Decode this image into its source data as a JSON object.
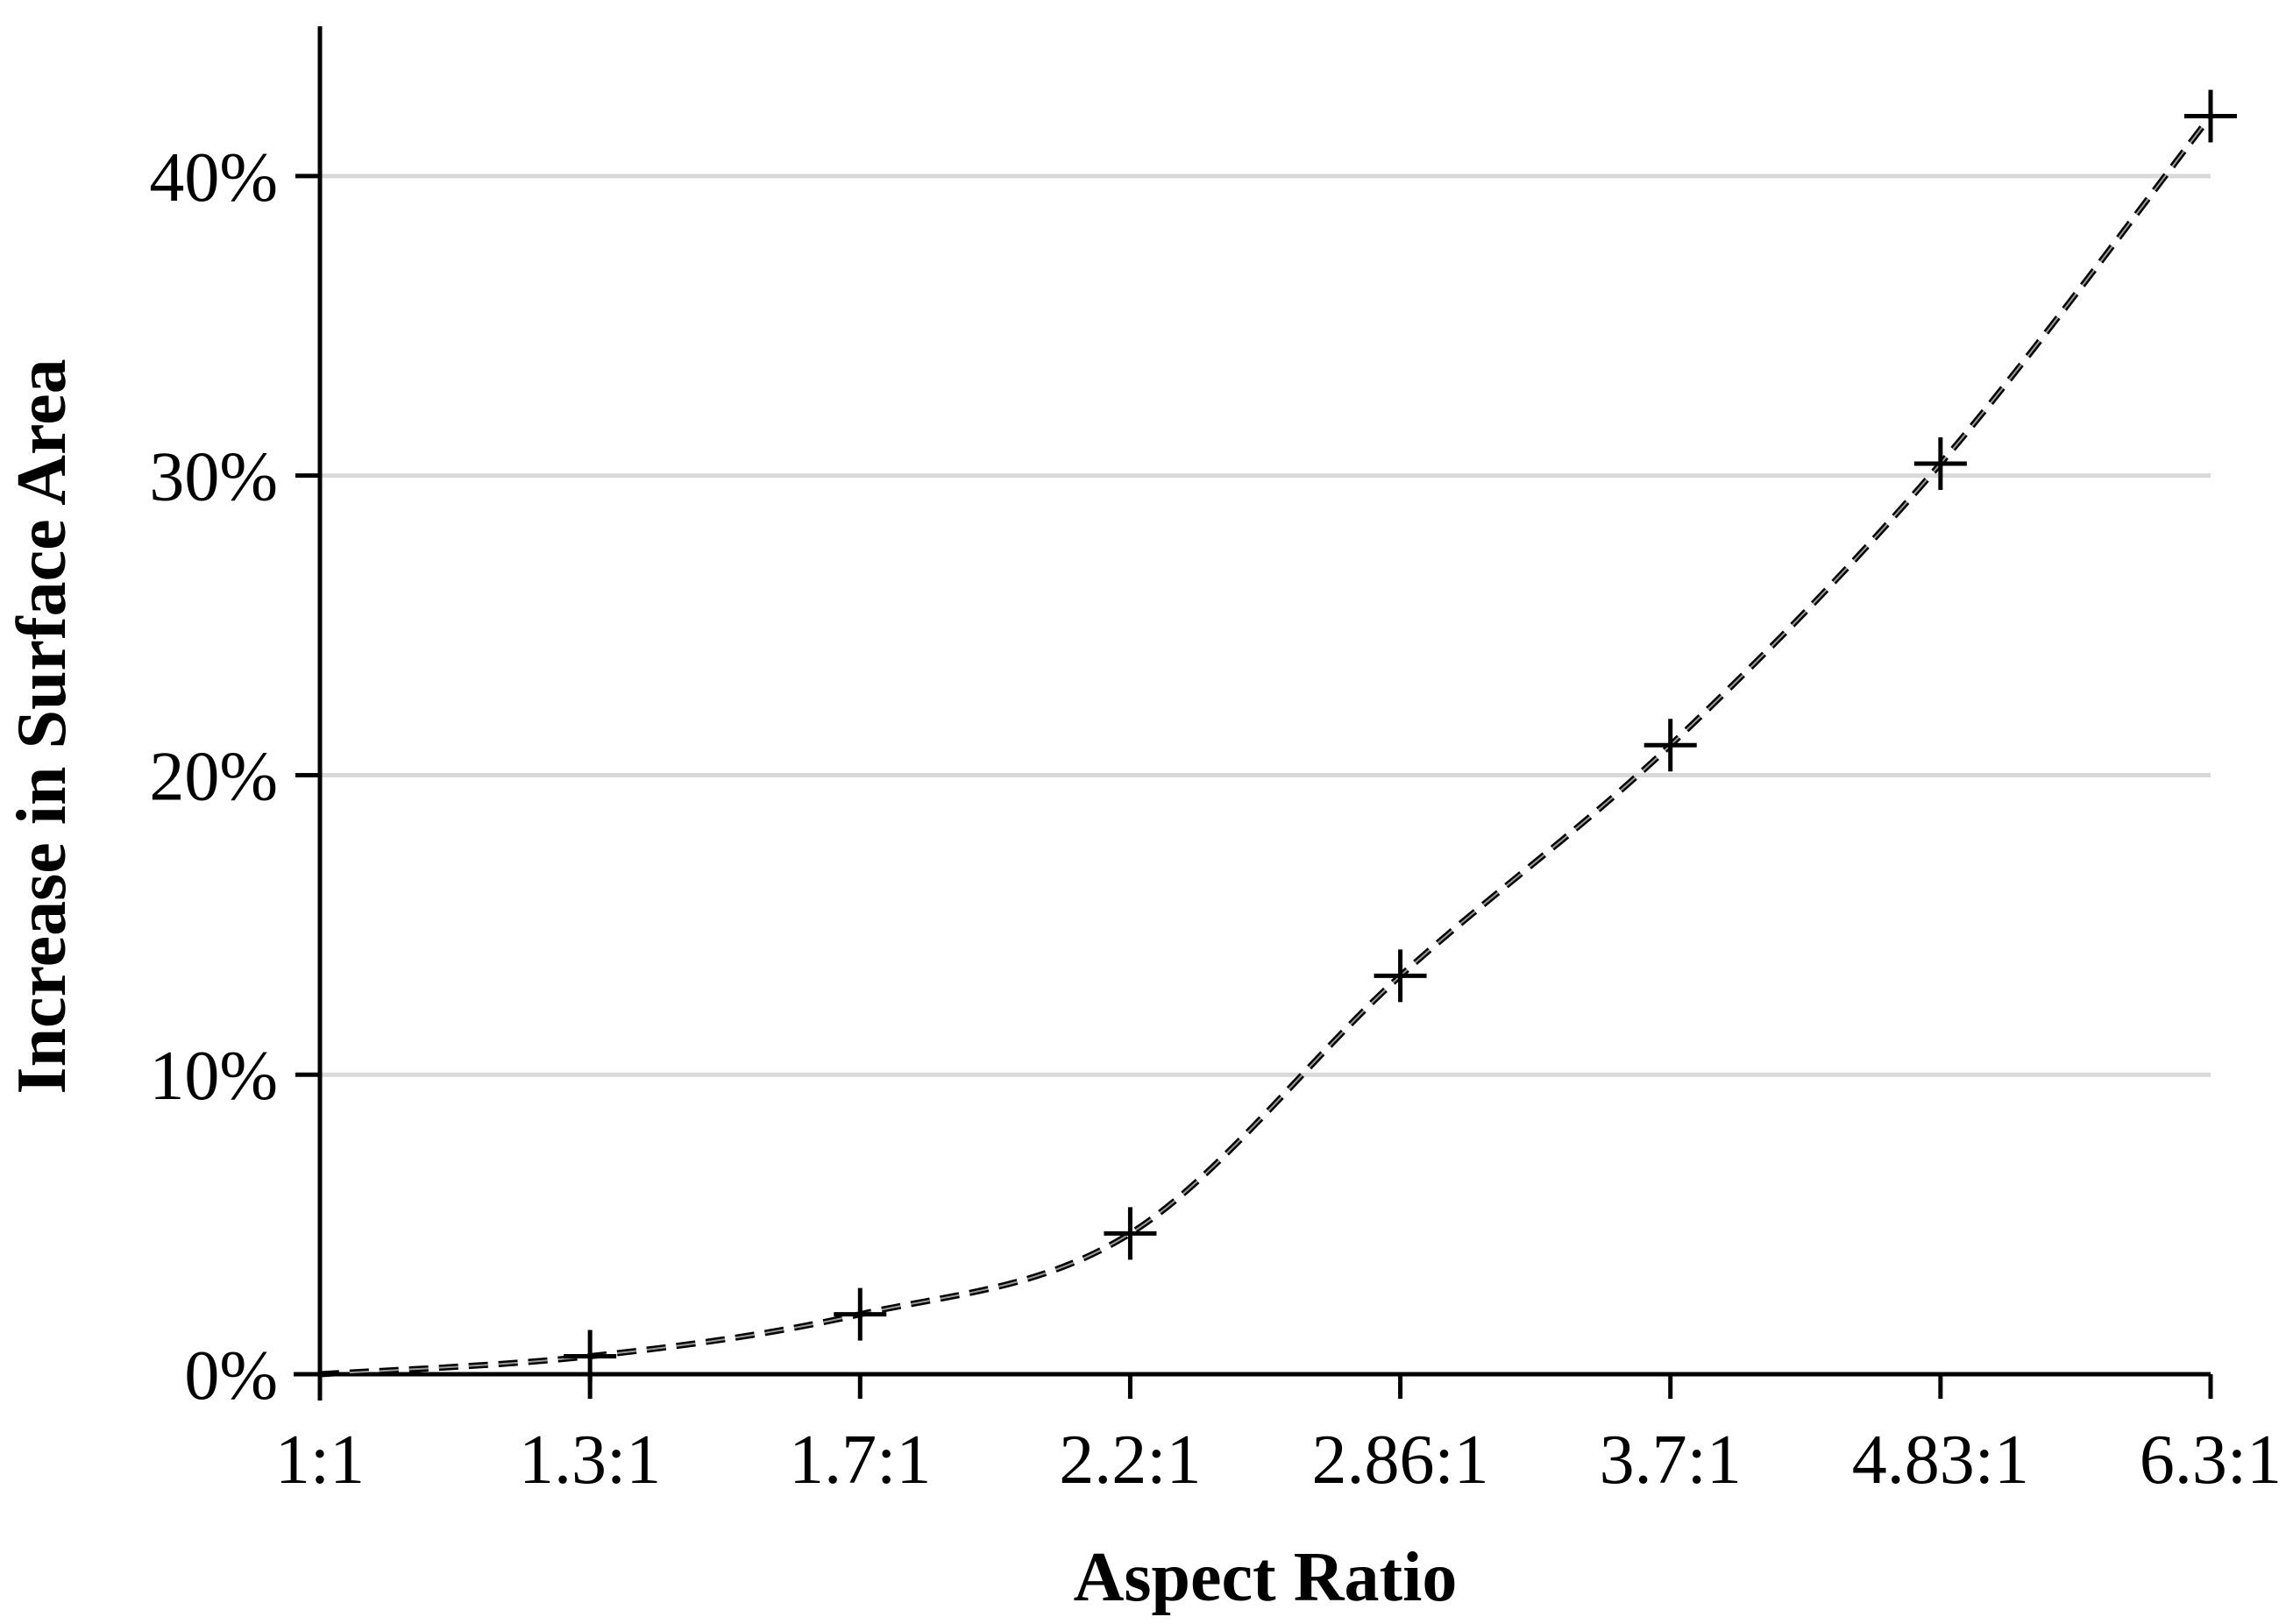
{
  "chart_data": {
    "type": "line",
    "title": "",
    "xlabel": "Aspect Ratio",
    "ylabel": "Increase in Surface Area",
    "categories": [
      "1:1",
      "1.3:1",
      "1.7:1",
      "2.2:1",
      "2.86:1",
      "3.7:1",
      "4.83:1",
      "6.3:1"
    ],
    "y_ticks": [
      {
        "value": 0,
        "label": "0%"
      },
      {
        "value": 10,
        "label": "10%"
      },
      {
        "value": 20,
        "label": "20%"
      },
      {
        "value": 30,
        "label": "30%"
      },
      {
        "value": 40,
        "label": "40%"
      }
    ],
    "ylim": [
      0,
      45
    ],
    "grid": "horizontal",
    "legend": "none",
    "series": [
      {
        "values": [
          0,
          0.6,
          2.0,
          4.7,
          13.3,
          21.0,
          30.4,
          42.0
        ],
        "line_style": "dashed",
        "marker": "plus",
        "color": "#000000"
      }
    ]
  }
}
